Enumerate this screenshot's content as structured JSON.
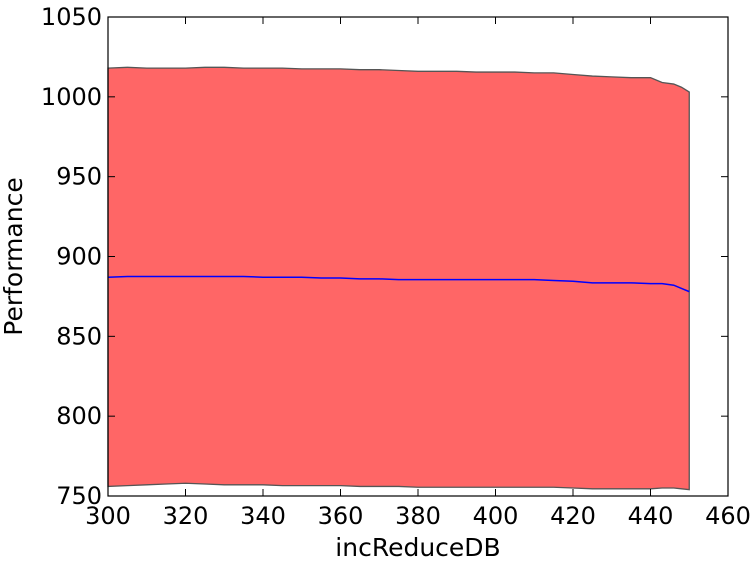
{
  "chart_data": {
    "type": "area",
    "title": "",
    "xlabel": "incReduceDB",
    "ylabel": "Performance",
    "xlim": [
      300,
      460
    ],
    "ylim": [
      750,
      1050
    ],
    "xticks": [
      300,
      320,
      340,
      360,
      380,
      400,
      420,
      440,
      460
    ],
    "yticks": [
      750,
      800,
      850,
      900,
      950,
      1000,
      1050
    ],
    "grid": false,
    "legend": "none",
    "series": [
      {
        "kind": "band",
        "fill_color": "#ff6666",
        "edge_color": "#555555",
        "x": [
          300,
          305,
          310,
          315,
          320,
          325,
          330,
          335,
          340,
          345,
          350,
          355,
          360,
          365,
          370,
          375,
          380,
          385,
          390,
          395,
          400,
          405,
          410,
          415,
          420,
          425,
          430,
          435,
          440,
          443,
          446,
          448,
          450
        ],
        "upper": [
          1018,
          1018.5,
          1018,
          1018,
          1018,
          1018.5,
          1018.5,
          1018,
          1018,
          1018,
          1017.5,
          1017.5,
          1017.5,
          1017,
          1017,
          1016.5,
          1016,
          1016,
          1016,
          1015.5,
          1015.5,
          1015.5,
          1015,
          1015,
          1014,
          1013,
          1012.5,
          1012,
          1012,
          1009,
          1008,
          1006,
          1003
        ],
        "lower": [
          756,
          756.5,
          757,
          757.5,
          758,
          757.5,
          757,
          757,
          757,
          756.5,
          756.5,
          756.5,
          756.5,
          756,
          756,
          756,
          755.5,
          755.5,
          755.5,
          755.5,
          755.5,
          755.5,
          755.5,
          755.5,
          755,
          754.5,
          754.5,
          754.5,
          754.5,
          755,
          755,
          754.5,
          754
        ]
      },
      {
        "kind": "line",
        "color": "#0000ff",
        "x": [
          300,
          305,
          310,
          315,
          320,
          325,
          330,
          335,
          340,
          345,
          350,
          355,
          360,
          365,
          370,
          375,
          380,
          385,
          390,
          395,
          400,
          405,
          410,
          415,
          420,
          425,
          430,
          435,
          440,
          443,
          446,
          448,
          450
        ],
        "values": [
          887,
          887.5,
          887.5,
          887.5,
          887.5,
          887.5,
          887.5,
          887.5,
          887,
          887,
          887,
          886.5,
          886.5,
          886,
          886,
          885.5,
          885.5,
          885.5,
          885.5,
          885.5,
          885.5,
          885.5,
          885.5,
          885,
          884.5,
          883.5,
          883.5,
          883.5,
          883,
          883,
          882,
          880,
          878
        ]
      }
    ]
  }
}
